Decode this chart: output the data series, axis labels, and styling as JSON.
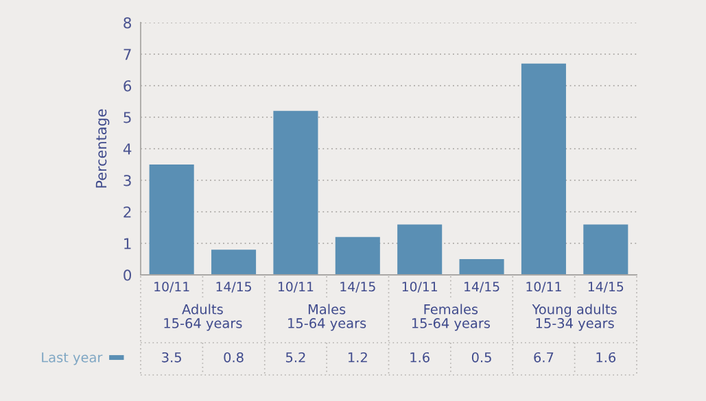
{
  "chart_data": {
    "type": "bar",
    "ylabel": "Percentage",
    "categories": [
      "10/11",
      "14/15",
      "10/11",
      "14/15",
      "10/11",
      "14/15",
      "10/11",
      "14/15"
    ],
    "series": [
      {
        "name": "Last year",
        "color": "#5a8fb4",
        "values": [
          3.5,
          0.8,
          5.2,
          1.2,
          1.6,
          0.5,
          6.7,
          1.6
        ]
      }
    ],
    "annotations": [
      "Adults\n15-64 years",
      "Males\n15-64 years",
      "Females\n15-64 years",
      "Young adults\n15-34 years"
    ],
    "ylim": [
      0,
      8
    ],
    "yticks": [
      0,
      1,
      2,
      3,
      4,
      5,
      6,
      7,
      8
    ],
    "grid": "y",
    "legend": "bottom left",
    "data_labels": true
  }
}
